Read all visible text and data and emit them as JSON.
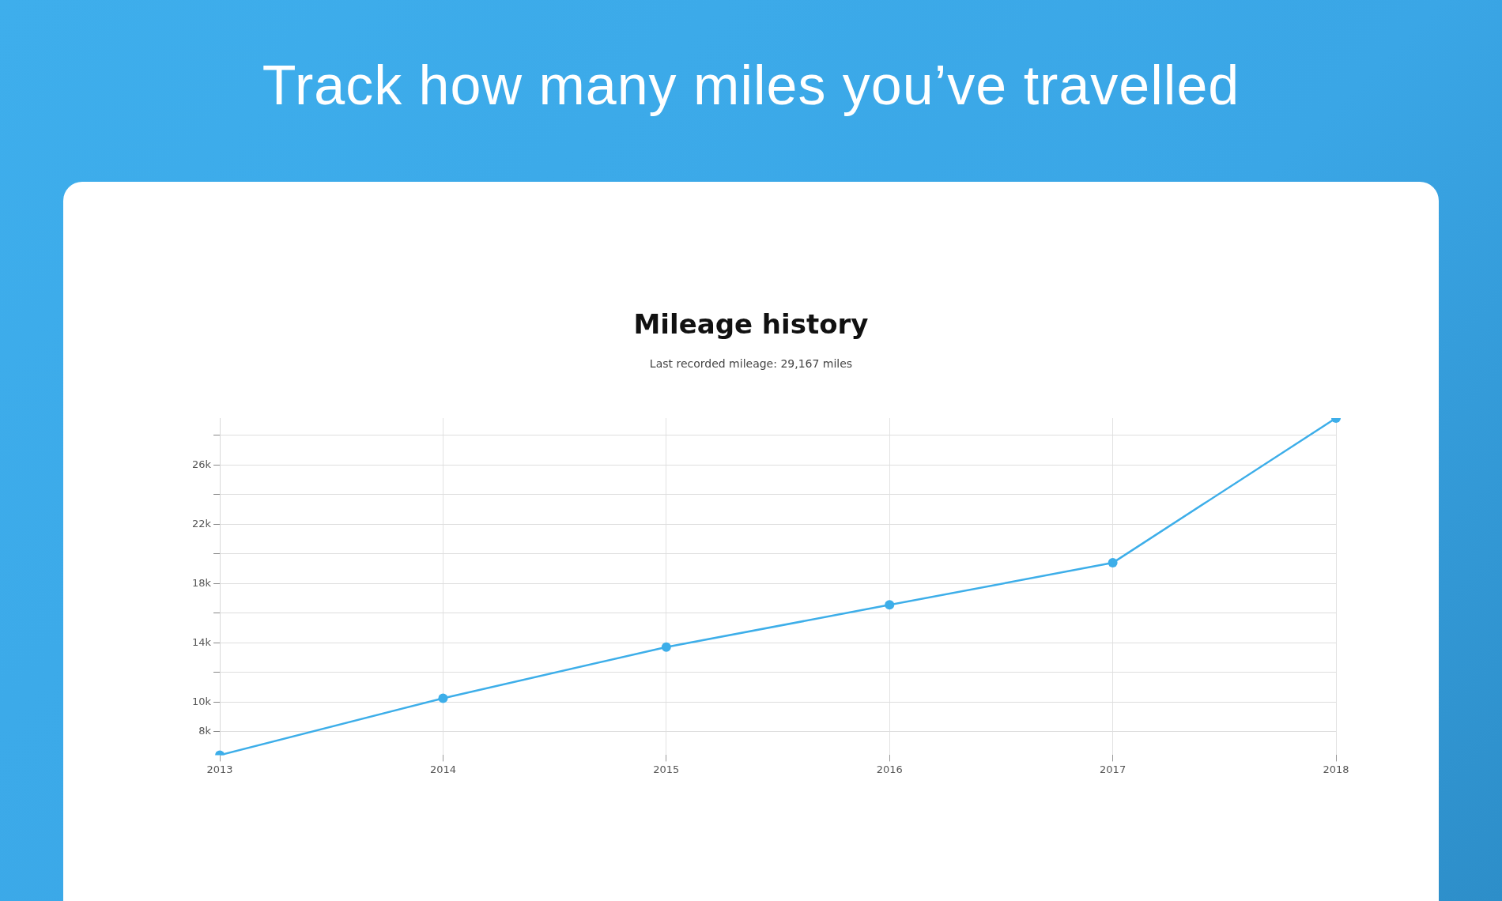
{
  "chart_data": {
    "type": "line",
    "title": "Mileage history",
    "subtitle": "Last recorded mileage: 29,167 miles",
    "annotations": [
      "Track how many miles you’ve travelled"
    ],
    "categories": [
      "2013",
      "2014",
      "2015",
      "2016",
      "2017",
      "2018"
    ],
    "series": [
      {
        "color": "#3daee9",
        "values": [
          6420,
          10260,
          13710,
          16560,
          19400,
          29167
        ]
      }
    ],
    "ylim": [
      6420,
      29167
    ],
    "yticks": [
      {
        "value": 8000,
        "label": "8k"
      },
      {
        "value": 10000,
        "label": "10k"
      },
      {
        "value": 12000,
        "label": null
      },
      {
        "value": 14000,
        "label": "14k"
      },
      {
        "value": 16000,
        "label": null
      },
      {
        "value": 18000,
        "label": "18k"
      },
      {
        "value": 20000,
        "label": null
      },
      {
        "value": 22000,
        "label": "22k"
      },
      {
        "value": 24000,
        "label": null
      },
      {
        "value": 26000,
        "label": "26k"
      },
      {
        "value": 28000,
        "label": null
      }
    ],
    "grid": true,
    "legend": false,
    "marker": "circle",
    "line_style": "solid"
  }
}
